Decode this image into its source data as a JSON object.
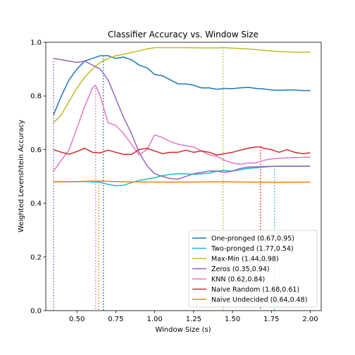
{
  "chart_data": {
    "type": "line",
    "title": "Classifier Accuracy vs. Window Size",
    "xlabel": "Window Size (s)",
    "ylabel": "Weighted Levenshtein Accuracy",
    "xlim": [
      0.3,
      2.07
    ],
    "ylim": [
      0.0,
      1.0
    ],
    "xticks": [
      0.5,
      0.75,
      1.0,
      1.25,
      1.5,
      1.75,
      2.0
    ],
    "xtick_labels": [
      "0.50",
      "0.75",
      "1.00",
      "1.25",
      "1.50",
      "1.75",
      "2.00"
    ],
    "yticks": [
      0.0,
      0.2,
      0.4,
      0.6,
      0.8,
      1.0
    ],
    "ytick_labels": [
      "0.0",
      "0.2",
      "0.4",
      "0.6",
      "0.8",
      "1.0"
    ],
    "legend_position": "lower-right",
    "series": [
      {
        "name": "One-pronged (0.67,0.95)",
        "color": "#1f77b4",
        "peak": [
          0.67,
          0.95
        ],
        "x": [
          0.35,
          0.4,
          0.45,
          0.5,
          0.55,
          0.6,
          0.65,
          0.7,
          0.75,
          0.8,
          0.85,
          0.9,
          0.95,
          1.0,
          1.05,
          1.1,
          1.15,
          1.2,
          1.25,
          1.3,
          1.35,
          1.4,
          1.45,
          1.5,
          1.55,
          1.6,
          1.65,
          1.7,
          1.75,
          1.8,
          1.85,
          1.9,
          1.95,
          2.0
        ],
        "y": [
          0.73,
          0.8,
          0.86,
          0.9,
          0.93,
          0.94,
          0.95,
          0.95,
          0.94,
          0.945,
          0.935,
          0.915,
          0.905,
          0.88,
          0.875,
          0.86,
          0.845,
          0.845,
          0.84,
          0.83,
          0.83,
          0.825,
          0.828,
          0.827,
          0.83,
          0.832,
          0.828,
          0.826,
          0.822,
          0.821,
          0.822,
          0.822,
          0.82,
          0.82
        ]
      },
      {
        "name": "Two-pronged (1.77,0.54)",
        "color": "#17becf",
        "peak": [
          1.77,
          0.54
        ],
        "x": [
          0.35,
          0.45,
          0.55,
          0.65,
          0.7,
          0.75,
          0.8,
          0.85,
          0.9,
          0.95,
          1.0,
          1.05,
          1.1,
          1.15,
          1.2,
          1.25,
          1.3,
          1.35,
          1.4,
          1.45,
          1.5,
          1.55,
          1.6,
          1.65,
          1.7,
          1.75,
          1.8,
          1.85,
          1.9,
          1.95,
          2.0
        ],
        "y": [
          0.48,
          0.48,
          0.481,
          0.478,
          0.47,
          0.465,
          0.467,
          0.477,
          0.485,
          0.49,
          0.495,
          0.503,
          0.508,
          0.51,
          0.51,
          0.508,
          0.51,
          0.512,
          0.52,
          0.522,
          0.52,
          0.525,
          0.53,
          0.532,
          0.535,
          0.537,
          0.538,
          0.538,
          0.538,
          0.538,
          0.538
        ]
      },
      {
        "name": "Max-Min (1.44,0.98)",
        "color": "#bcbd22",
        "peak": [
          1.44,
          0.98
        ],
        "x": [
          0.35,
          0.4,
          0.45,
          0.5,
          0.55,
          0.6,
          0.65,
          0.7,
          0.75,
          0.8,
          0.85,
          0.9,
          0.95,
          1.0,
          1.1,
          1.2,
          1.3,
          1.4,
          1.44,
          1.5,
          1.6,
          1.7,
          1.8,
          1.9,
          2.0
        ],
        "y": [
          0.7,
          0.73,
          0.78,
          0.83,
          0.87,
          0.9,
          0.925,
          0.94,
          0.95,
          0.955,
          0.962,
          0.968,
          0.975,
          0.98,
          0.98,
          0.98,
          0.979,
          0.979,
          0.98,
          0.978,
          0.975,
          0.97,
          0.965,
          0.963,
          0.963
        ]
      },
      {
        "name": "Zeros (0.35,0.94)",
        "color": "#9467bd",
        "peak": [
          0.35,
          0.94
        ],
        "x": [
          0.35,
          0.4,
          0.45,
          0.5,
          0.55,
          0.6,
          0.65,
          0.7,
          0.75,
          0.8,
          0.85,
          0.9,
          0.95,
          1.0,
          1.05,
          1.1,
          1.15,
          1.2,
          1.25,
          1.3,
          1.35,
          1.4,
          1.45,
          1.5,
          1.55,
          1.6,
          1.7,
          1.8,
          1.9,
          2.0
        ],
        "y": [
          0.94,
          0.935,
          0.93,
          0.925,
          0.93,
          0.915,
          0.9,
          0.86,
          0.79,
          0.72,
          0.66,
          0.59,
          0.54,
          0.51,
          0.5,
          0.492,
          0.49,
          0.5,
          0.51,
          0.515,
          0.52,
          0.52,
          0.515,
          0.52,
          0.53,
          0.535,
          0.537,
          0.538,
          0.538,
          0.538
        ]
      },
      {
        "name": "KNN (0.62,0.84)",
        "color": "#e377c2",
        "peak": [
          0.62,
          0.84
        ],
        "x": [
          0.35,
          0.4,
          0.45,
          0.5,
          0.55,
          0.6,
          0.62,
          0.65,
          0.7,
          0.75,
          0.8,
          0.85,
          0.9,
          0.95,
          1.0,
          1.05,
          1.1,
          1.15,
          1.2,
          1.25,
          1.3,
          1.35,
          1.4,
          1.45,
          1.5,
          1.55,
          1.6,
          1.65,
          1.7,
          1.75,
          1.8,
          1.9,
          2.0
        ],
        "y": [
          0.52,
          0.56,
          0.6,
          0.68,
          0.76,
          0.83,
          0.84,
          0.8,
          0.7,
          0.69,
          0.66,
          0.62,
          0.58,
          0.6,
          0.655,
          0.645,
          0.63,
          0.62,
          0.615,
          0.61,
          0.595,
          0.58,
          0.575,
          0.56,
          0.55,
          0.545,
          0.55,
          0.55,
          0.56,
          0.565,
          0.568,
          0.57,
          0.572
        ]
      },
      {
        "name": "Naive Random (1.68,0.61)",
        "color": "#d62728",
        "peak": [
          1.68,
          0.61
        ],
        "x": [
          0.35,
          0.4,
          0.45,
          0.5,
          0.55,
          0.6,
          0.65,
          0.7,
          0.75,
          0.8,
          0.85,
          0.9,
          0.95,
          1.0,
          1.05,
          1.1,
          1.15,
          1.2,
          1.25,
          1.3,
          1.35,
          1.4,
          1.45,
          1.5,
          1.55,
          1.6,
          1.65,
          1.68,
          1.7,
          1.75,
          1.8,
          1.85,
          1.9,
          1.95,
          2.0
        ],
        "y": [
          0.6,
          0.59,
          0.583,
          0.593,
          0.605,
          0.59,
          0.588,
          0.598,
          0.59,
          0.582,
          0.582,
          0.6,
          0.605,
          0.595,
          0.585,
          0.59,
          0.59,
          0.598,
          0.59,
          0.595,
          0.59,
          0.58,
          0.585,
          0.59,
          0.598,
          0.605,
          0.61,
          0.61,
          0.605,
          0.6,
          0.59,
          0.6,
          0.59,
          0.585,
          0.588
        ]
      },
      {
        "name": "Naive Undecided (0.64,0.48)",
        "color": "#ff7f0e",
        "peak": [
          0.64,
          0.48
        ],
        "x": [
          0.35,
          0.5,
          0.64,
          0.8,
          1.0,
          1.2,
          1.4,
          1.6,
          1.8,
          2.0
        ],
        "y": [
          0.48,
          0.481,
          0.483,
          0.48,
          0.479,
          0.479,
          0.48,
          0.479,
          0.478,
          0.479
        ]
      }
    ]
  }
}
